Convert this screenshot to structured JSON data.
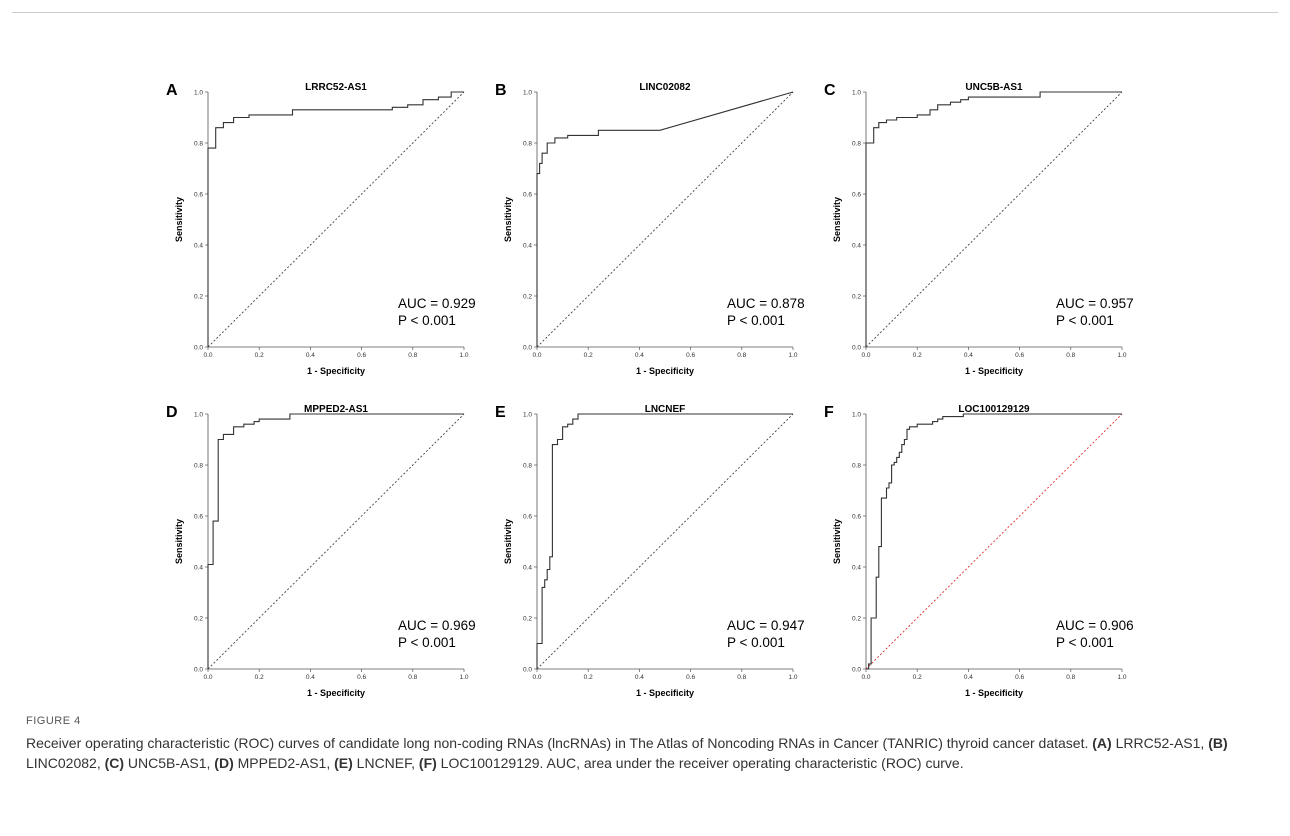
{
  "caption": {
    "label": "FIGURE 4",
    "text_parts": [
      {
        "t": "Receiver operating characteristic (ROC) curves of candidate long non-coding RNAs (lncRNAs) in The Atlas of Noncoding RNAs in Cancer (TANRIC) thyroid cancer dataset. "
      },
      {
        "t": "(A)",
        "b": true
      },
      {
        "t": " LRRC52-AS1, "
      },
      {
        "t": "(B)",
        "b": true
      },
      {
        "t": " LINC02082, "
      },
      {
        "t": "(C)",
        "b": true
      },
      {
        "t": " UNC5B-AS1, "
      },
      {
        "t": "(D)",
        "b": true
      },
      {
        "t": " MPPED2-AS1, "
      },
      {
        "t": "(E)",
        "b": true
      },
      {
        "t": " LNCNEF, "
      },
      {
        "t": "(F)",
        "b": true
      },
      {
        "t": " LOC100129129. AUC, area under the receiver operating characteristic (ROC) curve."
      }
    ]
  },
  "colors": {
    "curve": "#333333",
    "reference": "#444444",
    "reference_f": "#e03030",
    "axis": "#555555"
  },
  "chart_data": [
    {
      "type": "line",
      "panel": "A",
      "title": "LRRC52-AS1",
      "xlabel": "1 - Specificity",
      "ylabel": "Sensitivity",
      "xlim": [
        0,
        1
      ],
      "ylim": [
        0,
        1
      ],
      "x_ticks": [
        "0.0",
        "0.2",
        "0.4",
        "0.6",
        "0.8",
        "1.0"
      ],
      "y_ticks": [
        "0.0",
        "0.2",
        "0.4",
        "0.6",
        "0.8",
        "1.0"
      ],
      "auc_text": "AUC = 0.929",
      "p_text": "P < 0.001",
      "series": [
        {
          "x": [
            0,
            0,
            0.03,
            0.03,
            0.06,
            0.06,
            0.1,
            0.1,
            0.16,
            0.16,
            0.33,
            0.33,
            0.72,
            0.72,
            0.78,
            0.78,
            0.84,
            0.84,
            0.9,
            0.9,
            0.95,
            0.95,
            1
          ],
          "y": [
            0,
            0.78,
            0.78,
            0.86,
            0.86,
            0.88,
            0.88,
            0.9,
            0.9,
            0.91,
            0.91,
            0.93,
            0.93,
            0.94,
            0.94,
            0.95,
            0.95,
            0.97,
            0.97,
            0.98,
            0.98,
            1,
            1
          ]
        }
      ]
    },
    {
      "type": "line",
      "panel": "B",
      "title": "LINC02082",
      "xlabel": "1 - Specificity",
      "ylabel": "Sensitivity",
      "xlim": [
        0,
        1
      ],
      "ylim": [
        0,
        1
      ],
      "x_ticks": [
        "0.0",
        "0.2",
        "0.4",
        "0.6",
        "0.8",
        "1.0"
      ],
      "y_ticks": [
        "0.0",
        "0.2",
        "0.4",
        "0.6",
        "0.8",
        "1.0"
      ],
      "auc_text": "AUC = 0.878",
      "p_text": "P < 0.001",
      "series": [
        {
          "x": [
            0,
            0,
            0.01,
            0.01,
            0.02,
            0.02,
            0.04,
            0.04,
            0.07,
            0.07,
            0.12,
            0.12,
            0.24,
            0.24,
            0.48,
            1
          ],
          "y": [
            0,
            0.68,
            0.68,
            0.72,
            0.72,
            0.76,
            0.76,
            0.8,
            0.8,
            0.82,
            0.82,
            0.83,
            0.83,
            0.85,
            0.85,
            1
          ]
        }
      ]
    },
    {
      "type": "line",
      "panel": "C",
      "title": "UNC5B-AS1",
      "xlabel": "1 - Specificity",
      "ylabel": "Sensitivity",
      "xlim": [
        0,
        1
      ],
      "ylim": [
        0,
        1
      ],
      "x_ticks": [
        "0.0",
        "0.2",
        "0.4",
        "0.6",
        "0.8",
        "1.0"
      ],
      "y_ticks": [
        "0.0",
        "0.2",
        "0.4",
        "0.6",
        "0.8",
        "1.0"
      ],
      "auc_text": "AUC = 0.957",
      "p_text": "P < 0.001",
      "series": [
        {
          "x": [
            0,
            0,
            0.03,
            0.03,
            0.05,
            0.05,
            0.08,
            0.08,
            0.12,
            0.12,
            0.2,
            0.2,
            0.25,
            0.25,
            0.28,
            0.28,
            0.33,
            0.33,
            0.37,
            0.37,
            0.4,
            0.4,
            0.68,
            0.68,
            1
          ],
          "y": [
            0,
            0.8,
            0.8,
            0.86,
            0.86,
            0.88,
            0.88,
            0.89,
            0.89,
            0.9,
            0.9,
            0.91,
            0.91,
            0.93,
            0.93,
            0.95,
            0.95,
            0.96,
            0.96,
            0.97,
            0.97,
            0.98,
            0.98,
            1,
            1
          ]
        }
      ]
    },
    {
      "type": "line",
      "panel": "D",
      "title": "MPPED2-AS1",
      "xlabel": "1 - Specificity",
      "ylabel": "Sensitivity",
      "xlim": [
        0,
        1
      ],
      "ylim": [
        0,
        1
      ],
      "x_ticks": [
        "0.0",
        "0.2",
        "0.4",
        "0.6",
        "0.8",
        "1.0"
      ],
      "y_ticks": [
        "0.0",
        "0.2",
        "0.4",
        "0.6",
        "0.8",
        "1.0"
      ],
      "auc_text": "AUC = 0.969",
      "p_text": "P < 0.001",
      "series": [
        {
          "x": [
            0,
            0,
            0.02,
            0.02,
            0.04,
            0.04,
            0.06,
            0.06,
            0.1,
            0.1,
            0.14,
            0.14,
            0.18,
            0.18,
            0.2,
            0.2,
            0.32,
            0.32,
            1
          ],
          "y": [
            0,
            0.41,
            0.41,
            0.58,
            0.58,
            0.9,
            0.9,
            0.92,
            0.92,
            0.95,
            0.95,
            0.96,
            0.96,
            0.97,
            0.97,
            0.98,
            0.98,
            1,
            1
          ]
        }
      ]
    },
    {
      "type": "line",
      "panel": "E",
      "title": "LNCNEF",
      "xlabel": "1 - Specificity",
      "ylabel": "Sensitivity",
      "xlim": [
        0,
        1
      ],
      "ylim": [
        0,
        1
      ],
      "x_ticks": [
        "0.0",
        "0.2",
        "0.4",
        "0.6",
        "0.8",
        "1.0"
      ],
      "y_ticks": [
        "0.0",
        "0.2",
        "0.4",
        "0.6",
        "0.8",
        "1.0"
      ],
      "auc_text": "AUC = 0.947",
      "p_text": "P < 0.001",
      "series": [
        {
          "x": [
            0,
            0,
            0.02,
            0.02,
            0.03,
            0.03,
            0.04,
            0.04,
            0.05,
            0.05,
            0.06,
            0.06,
            0.08,
            0.08,
            0.1,
            0.1,
            0.12,
            0.12,
            0.14,
            0.14,
            0.16,
            0.16,
            1
          ],
          "y": [
            0,
            0.1,
            0.1,
            0.32,
            0.32,
            0.35,
            0.35,
            0.39,
            0.39,
            0.44,
            0.44,
            0.88,
            0.88,
            0.9,
            0.9,
            0.95,
            0.95,
            0.96,
            0.96,
            0.98,
            0.98,
            1,
            1
          ]
        }
      ]
    },
    {
      "type": "line",
      "panel": "F",
      "title": "LOC100129129",
      "xlabel": "1 - Specificity",
      "ylabel": "Sensitivity",
      "xlim": [
        0,
        1
      ],
      "ylim": [
        0,
        1
      ],
      "x_ticks": [
        "0.0",
        "0.2",
        "0.4",
        "0.6",
        "0.8",
        "1.0"
      ],
      "y_ticks": [
        "0.0",
        "0.2",
        "0.4",
        "0.6",
        "0.8",
        "1.0"
      ],
      "auc_text": "AUC = 0.906",
      "p_text": "P < 0.001",
      "reference_color": "#e03030",
      "series": [
        {
          "x": [
            0,
            0.01,
            0.01,
            0.02,
            0.02,
            0.04,
            0.04,
            0.05,
            0.05,
            0.06,
            0.06,
            0.08,
            0.08,
            0.09,
            0.09,
            0.1,
            0.1,
            0.11,
            0.11,
            0.12,
            0.12,
            0.13,
            0.13,
            0.14,
            0.14,
            0.15,
            0.15,
            0.16,
            0.16,
            0.17,
            0.17,
            0.18,
            0.18,
            0.2,
            0.2,
            0.26,
            0.26,
            0.28,
            0.28,
            0.3,
            0.3,
            0.38,
            0.38,
            1
          ],
          "y": [
            0,
            0,
            0.02,
            0.02,
            0.2,
            0.2,
            0.36,
            0.36,
            0.48,
            0.48,
            0.67,
            0.67,
            0.71,
            0.71,
            0.73,
            0.73,
            0.8,
            0.8,
            0.81,
            0.81,
            0.83,
            0.83,
            0.85,
            0.85,
            0.88,
            0.88,
            0.9,
            0.9,
            0.94,
            0.94,
            0.95,
            0.95,
            0.95,
            0.95,
            0.96,
            0.96,
            0.97,
            0.97,
            0.98,
            0.98,
            0.99,
            0.99,
            1,
            1
          ]
        }
      ]
    }
  ]
}
